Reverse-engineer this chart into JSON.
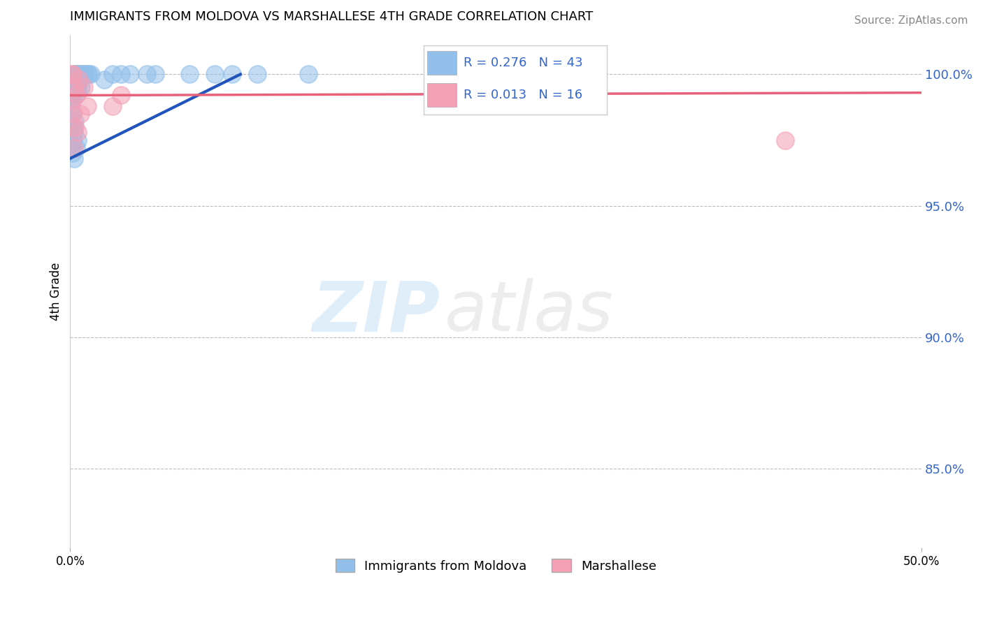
{
  "title": "IMMIGRANTS FROM MOLDOVA VS MARSHALLESE 4TH GRADE CORRELATION CHART",
  "source": "Source: ZipAtlas.com",
  "ylabel": "4th Grade",
  "xlim": [
    0.0,
    50.0
  ],
  "ylim": [
    82.0,
    101.5
  ],
  "blue_R": 0.276,
  "blue_N": 43,
  "pink_R": 0.013,
  "pink_N": 16,
  "blue_color": "#92c0ea",
  "pink_color": "#f4a0b5",
  "trendline_blue": "#2255bb",
  "trendline_pink": "#e8607a",
  "blue_trendline_x": [
    0.0,
    10.0
  ],
  "blue_trendline_y": [
    96.8,
    100.0
  ],
  "pink_trendline_x": [
    0.0,
    50.0
  ],
  "pink_trendline_y": [
    99.2,
    99.3
  ],
  "blue_scatter_x": [
    0.05,
    0.08,
    0.1,
    0.12,
    0.15,
    0.18,
    0.2,
    0.22,
    0.25,
    0.28,
    0.3,
    0.32,
    0.35,
    0.38,
    0.4,
    0.42,
    0.45,
    0.48,
    0.5,
    0.55,
    0.6,
    0.65,
    0.7,
    0.8,
    0.9,
    1.0,
    1.1,
    1.2,
    0.15,
    0.25,
    0.35,
    0.45,
    2.0,
    2.5,
    3.0,
    3.5,
    4.5,
    5.0,
    7.0,
    8.5,
    9.5,
    11.0,
    14.0
  ],
  "blue_scatter_y": [
    99.5,
    98.8,
    99.0,
    98.5,
    99.2,
    97.5,
    98.0,
    97.8,
    99.8,
    98.2,
    100.0,
    100.0,
    100.0,
    100.0,
    100.0,
    99.5,
    99.3,
    99.7,
    100.0,
    99.8,
    100.0,
    99.5,
    100.0,
    100.0,
    100.0,
    100.0,
    100.0,
    100.0,
    97.0,
    96.8,
    97.2,
    97.5,
    99.8,
    100.0,
    100.0,
    100.0,
    100.0,
    100.0,
    100.0,
    100.0,
    100.0,
    100.0,
    100.0
  ],
  "pink_scatter_x": [
    0.05,
    0.1,
    0.15,
    0.18,
    0.22,
    0.28,
    0.35,
    0.42,
    0.5,
    0.6,
    0.8,
    1.0,
    2.5,
    3.0,
    42.0,
    0.25
  ],
  "pink_scatter_y": [
    99.0,
    100.0,
    100.0,
    98.5,
    99.5,
    98.0,
    99.2,
    97.8,
    99.8,
    98.5,
    99.5,
    98.8,
    98.8,
    99.2,
    97.5,
    97.2
  ]
}
